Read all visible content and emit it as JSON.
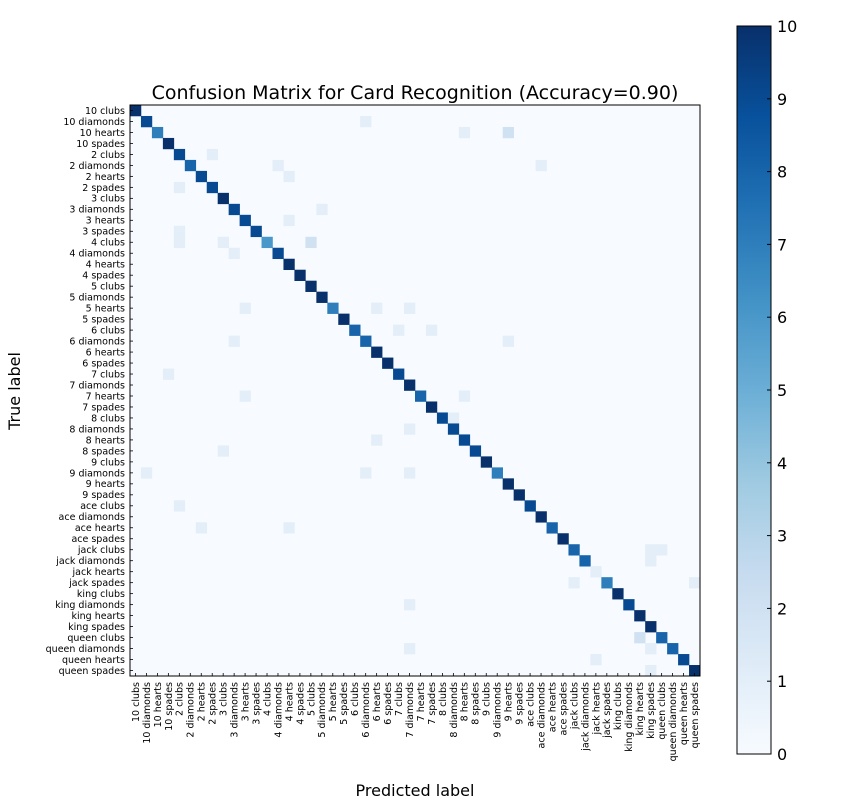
{
  "chart_data": {
    "type": "heatmap",
    "title": "Confusion Matrix for Card Recognition (Accuracy=0.90)",
    "xlabel": "Predicted label",
    "ylabel": "True label",
    "labels": [
      "10 clubs",
      "10 diamonds",
      "10 hearts",
      "10 spades",
      "2 clubs",
      "2 diamonds",
      "2 hearts",
      "2 spades",
      "3 clubs",
      "3 diamonds",
      "3 hearts",
      "3 spades",
      "4 clubs",
      "4 diamonds",
      "4 hearts",
      "4 spades",
      "5 clubs",
      "5 diamonds",
      "5 hearts",
      "5 spades",
      "6 clubs",
      "6 diamonds",
      "6 hearts",
      "6 spades",
      "7 clubs",
      "7 diamonds",
      "7 hearts",
      "7 spades",
      "8 clubs",
      "8 diamonds",
      "8 hearts",
      "8 spades",
      "9 clubs",
      "9 diamonds",
      "9 hearts",
      "9 spades",
      "ace clubs",
      "ace diamonds",
      "ace hearts",
      "ace spades",
      "jack clubs",
      "jack diamonds",
      "jack hearts",
      "jack spades",
      "king clubs",
      "king diamonds",
      "king hearts",
      "king spades",
      "queen clubs",
      "queen diamonds",
      "queen hearts",
      "queen spades"
    ],
    "diagonal": [
      10,
      9,
      7,
      10,
      9,
      8,
      9,
      9,
      10,
      9,
      9,
      9,
      6,
      9,
      10,
      10,
      10,
      10,
      7,
      10,
      8,
      8,
      10,
      10,
      9,
      10,
      8,
      10,
      9,
      9,
      9,
      9,
      10,
      7,
      10,
      10,
      9,
      10,
      8,
      10,
      8,
      8,
      10,
      7,
      10,
      9,
      10,
      10,
      8,
      8,
      9,
      10
    ],
    "off_diagonal": [
      [
        1,
        21,
        1
      ],
      [
        2,
        30,
        1
      ],
      [
        2,
        34,
        2
      ],
      [
        4,
        7,
        1
      ],
      [
        5,
        13,
        1
      ],
      [
        5,
        37,
        1
      ],
      [
        6,
        14,
        1
      ],
      [
        7,
        4,
        1
      ],
      [
        9,
        17,
        1
      ],
      [
        10,
        14,
        1
      ],
      [
        11,
        4,
        1
      ],
      [
        12,
        4,
        1
      ],
      [
        12,
        8,
        1
      ],
      [
        12,
        16,
        2
      ],
      [
        13,
        9,
        1
      ],
      [
        18,
        10,
        1
      ],
      [
        18,
        22,
        1
      ],
      [
        18,
        25,
        1
      ],
      [
        20,
        24,
        1
      ],
      [
        20,
        27,
        1
      ],
      [
        21,
        9,
        1
      ],
      [
        21,
        34,
        1
      ],
      [
        24,
        3,
        1
      ],
      [
        26,
        10,
        1
      ],
      [
        26,
        30,
        1
      ],
      [
        28,
        29,
        1
      ],
      [
        29,
        25,
        1
      ],
      [
        30,
        22,
        1
      ],
      [
        31,
        8,
        1
      ],
      [
        33,
        1,
        1
      ],
      [
        33,
        21,
        1
      ],
      [
        33,
        25,
        1
      ],
      [
        36,
        4,
        1
      ],
      [
        38,
        6,
        1
      ],
      [
        38,
        14,
        1
      ],
      [
        40,
        47,
        1
      ],
      [
        40,
        48,
        1
      ],
      [
        41,
        47,
        1
      ],
      [
        42,
        42,
        1
      ],
      [
        43,
        40,
        1
      ],
      [
        43,
        51,
        1
      ],
      [
        45,
        25,
        1
      ],
      [
        48,
        46,
        2
      ],
      [
        49,
        47,
        1
      ],
      [
        49,
        25,
        1
      ],
      [
        50,
        42,
        1
      ],
      [
        51,
        47,
        1
      ]
    ],
    "colorbar": {
      "min": 0,
      "max": 10,
      "ticks": [
        0,
        1,
        2,
        3,
        4,
        5,
        6,
        7,
        8,
        9,
        10
      ]
    },
    "colormap": {
      "low": "#f7fbff",
      "mid": "#6baed6",
      "high": "#08306b"
    }
  }
}
